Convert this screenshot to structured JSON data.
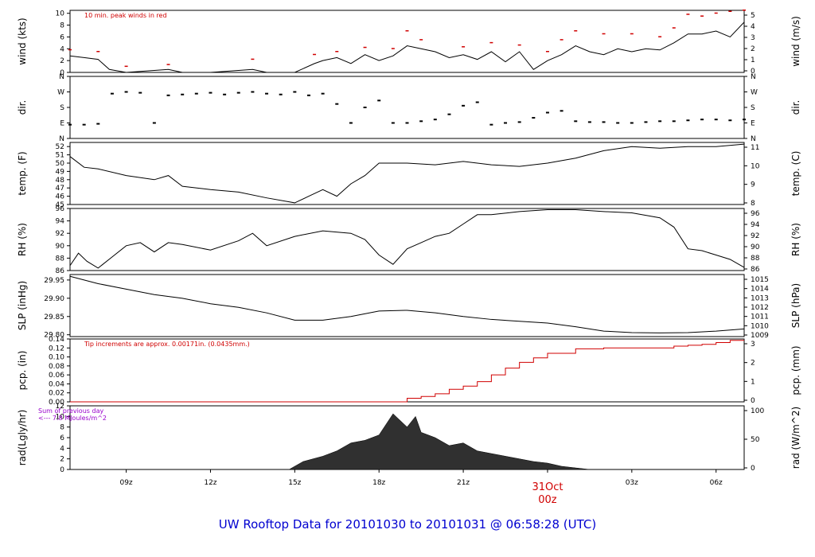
{
  "title": "UW Rooftop Data for 20101030  to  20101031 @ 06:58:28  (UTC)",
  "chart_data": {
    "type": "line",
    "x_axis": {
      "tick_labels": [
        "09z",
        "12z",
        "15z",
        "18z",
        "21z",
        "00z",
        "03z",
        "06z"
      ],
      "tick_hours": [
        9,
        12,
        15,
        18,
        21,
        24,
        27,
        30
      ],
      "range_hours_utc": [
        7.0,
        31.0
      ],
      "date_marker": {
        "line1": "31Oct",
        "line2": "00z",
        "hour": 24
      }
    },
    "panels": [
      {
        "id": "wind",
        "ylabel_left": "wind (kts)",
        "ylabel_right": "wind (m/s)",
        "left_ticks": [
          "0",
          "2",
          "4",
          "6",
          "8",
          "10"
        ],
        "left_range": [
          0,
          10.5
        ],
        "right_ticks": [
          "0",
          "1",
          "2",
          "3",
          "4",
          "5"
        ],
        "annotation": "10 min. peak winds in red",
        "annotation_color": "#d00000",
        "series": [
          {
            "name": "wind",
            "color": "#000000",
            "x": [
              7.0,
              7.5,
              8.0,
              8.4,
              9.0,
              10.5,
              11.0,
              12.0,
              13.5,
              14.0,
              15.0,
              15.7,
              16.0,
              16.5,
              17.0,
              17.5,
              18.0,
              18.5,
              19.0,
              19.5,
              20.0,
              20.5,
              21.0,
              21.5,
              22.0,
              22.5,
              23.0,
              23.5,
              24.0,
              24.5,
              25.0,
              25.5,
              26.0,
              26.5,
              27.0,
              27.5,
              28.0,
              28.5,
              29.0,
              29.5,
              30.0,
              30.5,
              31.0
            ],
            "y": [
              2.8,
              2.5,
              2.2,
              0.5,
              0,
              0.5,
              0,
              0,
              0.5,
              0,
              0,
              1.5,
              2.0,
              2.5,
              1.5,
              3.0,
              2.0,
              2.8,
              4.5,
              4.0,
              3.5,
              2.5,
              3.0,
              2.2,
              3.5,
              1.8,
              3.5,
              0.5,
              2.0,
              3.0,
              4.5,
              3.5,
              3.0,
              4.0,
              3.5,
              4.0,
              3.8,
              5.0,
              6.5,
              6.5,
              7.0,
              6.0,
              8.5
            ]
          },
          {
            "name": "10 min. peak winds",
            "color": "#d00000",
            "x": [
              7.0,
              8.0,
              9.0,
              10.5,
              13.5,
              15.7,
              16.5,
              17.5,
              18.5,
              19.0,
              19.5,
              21.0,
              22.0,
              23.0,
              24.0,
              24.5,
              25.0,
              26.0,
              27.0,
              28.0,
              28.5,
              29.0,
              29.5,
              30.0,
              30.5,
              31.0
            ],
            "y": [
              3.8,
              3.5,
              1.0,
              1.3,
              2.2,
              3.0,
              3.5,
              4.2,
              4.0,
              7.0,
              5.5,
              4.3,
              5.0,
              4.6,
              3.5,
              5.5,
              7.0,
              6.5,
              6.5,
              6.0,
              7.5,
              9.8,
              9.5,
              10.0,
              10.3,
              10.5
            ]
          }
        ]
      },
      {
        "id": "dir",
        "ylabel_left": "dir.",
        "ylabel_right": "dir.",
        "left_ticks": [
          "N",
          "E",
          "S",
          "W",
          "N"
        ],
        "left_range": [
          0,
          360
        ],
        "right_ticks": [
          "N",
          "E",
          "S",
          "W",
          "N"
        ],
        "series": [
          {
            "name": "direction",
            "color": "#000000",
            "style": "dots",
            "x": [
              7.0,
              7.5,
              8.0,
              8.5,
              9.0,
              9.5,
              10.0,
              10.5,
              11.0,
              11.5,
              12.0,
              12.5,
              13.0,
              13.5,
              14.0,
              14.5,
              15.0,
              15.5,
              16.0,
              16.5,
              17.0,
              17.5,
              18.0,
              18.5,
              19.0,
              19.5,
              20.0,
              20.5,
              21.0,
              21.5,
              22.0,
              22.5,
              23.0,
              23.5,
              24.0,
              24.5,
              25.0,
              25.5,
              26.0,
              26.5,
              27.0,
              27.5,
              28.0,
              28.5,
              29.0,
              29.5,
              30.0,
              30.5,
              31.0
            ],
            "y": [
              80,
              80,
              85,
              260,
              270,
              265,
              90,
              250,
              255,
              260,
              265,
              255,
              265,
              270,
              260,
              255,
              270,
              250,
              260,
              200,
              90,
              180,
              220,
              90,
              90,
              100,
              110,
              140,
              190,
              210,
              80,
              90,
              95,
              120,
              150,
              160,
              100,
              95,
              95,
              90,
              90,
              95,
              100,
              100,
              105,
              110,
              110,
              105,
              110
            ]
          }
        ]
      },
      {
        "id": "temp",
        "ylabel_left": "temp. (F)",
        "ylabel_right": "temp. (C)",
        "left_ticks": [
          "45",
          "46",
          "47",
          "48",
          "49",
          "50",
          "51",
          "52"
        ],
        "left_range": [
          45,
          52.5
        ],
        "right_ticks": [
          "8",
          "9",
          "10",
          "11"
        ],
        "series": [
          {
            "name": "temperature",
            "color": "#000000",
            "x": [
              7.0,
              7.5,
              8.0,
              9.0,
              10.0,
              10.5,
              11.0,
              12.0,
              13.0,
              14.0,
              15.0,
              15.5,
              16.0,
              16.5,
              17.0,
              17.5,
              18.0,
              19.0,
              20.0,
              21.0,
              22.0,
              23.0,
              24.0,
              25.0,
              26.0,
              27.0,
              28.0,
              29.0,
              30.0,
              31.0
            ],
            "y": [
              50.8,
              49.5,
              49.3,
              48.5,
              48.0,
              48.5,
              47.2,
              46.8,
              46.5,
              45.8,
              45.2,
              46.0,
              46.8,
              46.0,
              47.5,
              48.5,
              50.0,
              50.0,
              49.8,
              50.2,
              49.8,
              49.6,
              50.0,
              50.6,
              51.5,
              52.0,
              51.8,
              52.0,
              52.0,
              52.3
            ]
          }
        ]
      },
      {
        "id": "rh",
        "ylabel_left": "RH (%)",
        "ylabel_right": "RH (%)",
        "left_ticks": [
          "86",
          "88",
          "90",
          "92",
          "94",
          "96"
        ],
        "left_range": [
          86,
          96
        ],
        "right_ticks": [
          "86",
          "88",
          "90",
          "92",
          "94",
          "96"
        ],
        "series": [
          {
            "name": "relative humidity",
            "color": "#000000",
            "x": [
              7.0,
              7.3,
              7.6,
              8.0,
              8.5,
              9.0,
              9.5,
              10.0,
              10.5,
              11.0,
              12.0,
              13.0,
              13.5,
              14.0,
              15.0,
              16.0,
              17.0,
              17.5,
              18.0,
              18.5,
              19.0,
              19.5,
              20.0,
              20.5,
              21.0,
              21.5,
              22.0,
              23.0,
              24.0,
              25.0,
              26.0,
              27.0,
              28.0,
              28.5,
              29.0,
              29.5,
              30.0,
              30.5,
              31.0
            ],
            "y": [
              86.8,
              88.8,
              87.5,
              86.4,
              88.2,
              90.0,
              90.5,
              89.0,
              90.5,
              90.2,
              89.3,
              90.8,
              92.0,
              90.0,
              91.5,
              92.4,
              92.0,
              91.0,
              88.5,
              87.0,
              89.5,
              90.5,
              91.5,
              92.0,
              93.5,
              95.0,
              95.0,
              95.5,
              95.8,
              95.8,
              95.5,
              95.3,
              94.5,
              93.0,
              89.5,
              89.2,
              88.5,
              87.8,
              86.5
            ]
          }
        ]
      },
      {
        "id": "slp",
        "ylabel_left": "SLP (inHg)",
        "ylabel_right": "SLP (hPa)",
        "left_ticks": [
          "29.80",
          "29.85",
          "29.90",
          "29.95"
        ],
        "left_range": [
          29.795,
          29.965
        ],
        "right_ticks": [
          "1009",
          "1010",
          "1011",
          "1012",
          "1013",
          "1014",
          "1015"
        ],
        "series": [
          {
            "name": "sea level pressure",
            "color": "#000000",
            "x": [
              7.0,
              8.0,
              9.0,
              10.0,
              11.0,
              12.0,
              13.0,
              14.0,
              15.0,
              16.0,
              17.0,
              18.0,
              19.0,
              20.0,
              21.0,
              22.0,
              23.0,
              24.0,
              25.0,
              26.0,
              27.0,
              28.0,
              29.0,
              30.0,
              31.0
            ],
            "y": [
              29.96,
              29.94,
              29.925,
              29.91,
              29.9,
              29.885,
              29.875,
              29.86,
              29.84,
              29.84,
              29.85,
              29.865,
              29.867,
              29.86,
              29.85,
              29.842,
              29.837,
              29.832,
              29.822,
              29.81,
              29.806,
              29.805,
              29.806,
              29.81,
              29.816
            ]
          }
        ]
      },
      {
        "id": "pcp",
        "ylabel_left": "pcp. (in)",
        "ylabel_right": "pcp. (mm)",
        "left_ticks": [
          "0.00",
          "0.02",
          "0.04",
          "0.06",
          "0.08",
          "0.10",
          "0.12",
          "0.14"
        ],
        "left_range": [
          0,
          0.14
        ],
        "right_ticks": [
          "0",
          "1",
          "2",
          "3"
        ],
        "annotation": "Tip increments are approx. 0.00171in. (0.0435mm.)",
        "annotation_color": "#d00000",
        "series": [
          {
            "name": "precipitation",
            "color": "#d00000",
            "style": "step",
            "x": [
              7.0,
              18.5,
              19.0,
              19.5,
              20.0,
              20.5,
              21.0,
              21.5,
              22.0,
              22.5,
              23.0,
              23.5,
              24.0,
              25.0,
              26.0,
              27.0,
              28.0,
              28.5,
              29.0,
              29.5,
              30.0,
              30.5,
              31.0
            ],
            "y": [
              0,
              0,
              0.008,
              0.012,
              0.018,
              0.028,
              0.035,
              0.045,
              0.06,
              0.075,
              0.088,
              0.098,
              0.108,
              0.118,
              0.12,
              0.12,
              0.12,
              0.124,
              0.126,
              0.128,
              0.132,
              0.137,
              0.137
            ]
          }
        ]
      },
      {
        "id": "rad",
        "ylabel_left": "rad(Lgly/hr)",
        "ylabel_right": "rad (W/m^2)",
        "left_ticks": [
          "0",
          "2",
          "4",
          "6",
          "8",
          "10",
          "12"
        ],
        "left_range": [
          0,
          12
        ],
        "right_ticks": [
          "0",
          "50",
          "100"
        ],
        "annotation": "Sum of previous day\n<--- 7.8 MJoules/m^2",
        "annotation_color": "#9900cc",
        "series": [
          {
            "name": "solar radiation",
            "color": "#303030",
            "style": "area",
            "x": [
              14.8,
              15.3,
              16.0,
              16.5,
              17.0,
              17.5,
              18.0,
              18.5,
              19.0,
              19.3,
              19.5,
              20.0,
              20.5,
              21.0,
              21.5,
              22.0,
              22.5,
              23.0,
              23.5,
              24.0,
              24.5,
              25.0,
              25.5
            ],
            "y": [
              0,
              1.5,
              2.5,
              3.5,
              5.0,
              5.5,
              6.5,
              10.5,
              8.0,
              10.0,
              7.0,
              6.0,
              4.5,
              5.0,
              3.5,
              3.0,
              2.5,
              2.0,
              1.5,
              1.2,
              0.6,
              0.3,
              0
            ]
          }
        ]
      }
    ],
    "legend_placement": "none",
    "grid": false
  }
}
